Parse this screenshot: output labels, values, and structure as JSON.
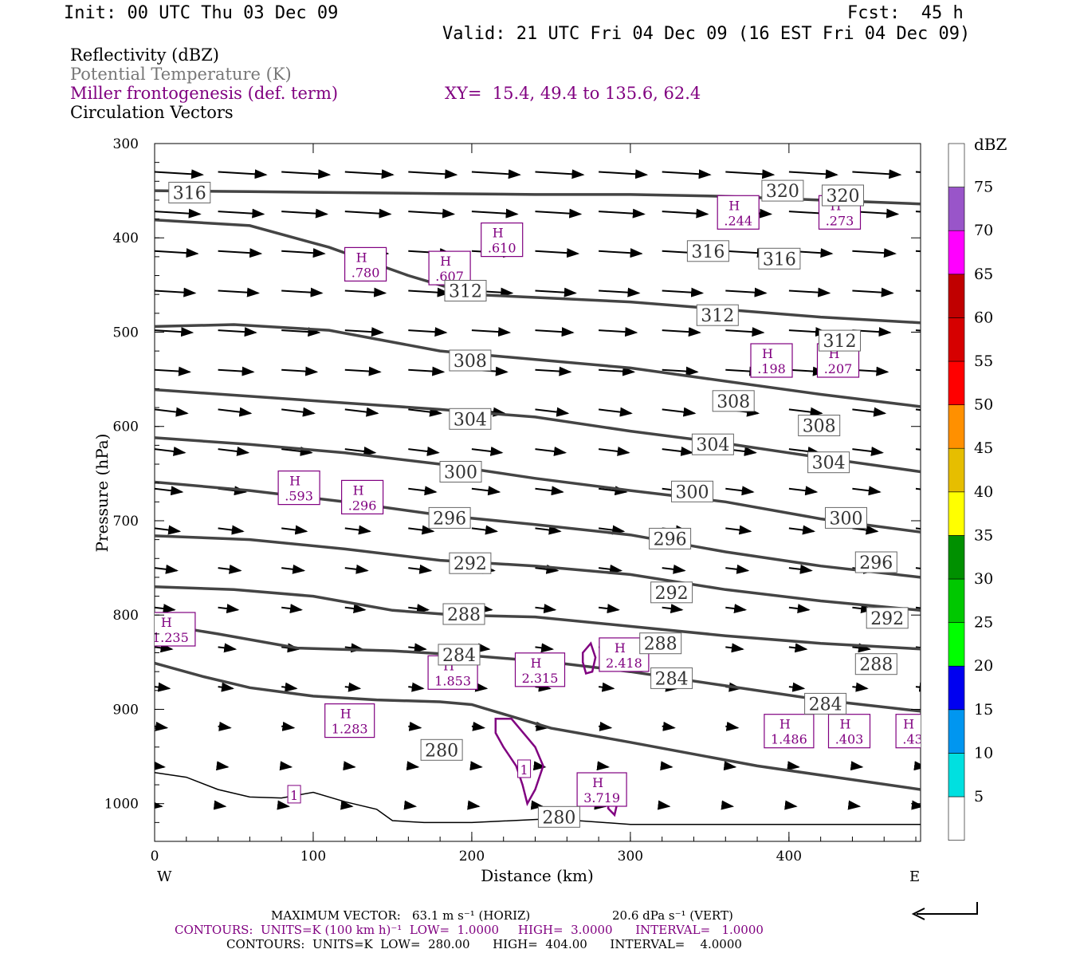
{
  "header": {
    "init": "Init: 00 UTC Thu 03 Dec 09",
    "fcst": "Fcst:  45 h",
    "valid": "Valid: 21 UTC Fri 04 Dec 09 (16 EST Fri 04 Dec 09)"
  },
  "legend": {
    "reflectivity": "Reflectivity (dBZ)",
    "theta": "Potential Temperature (K)",
    "miller": "Miller frontogenesis (def. term)",
    "xy": "XY=  15.4, 49.4 to 135.6, 62.4",
    "vectors": "Circulation Vectors"
  },
  "footer": {
    "max_vector_label": "MAXIMUM VECTOR:",
    "max_vector_horiz": "63.1 m s⁻¹ (HORIZ)",
    "max_vector_vert": "20.6 dPa s⁻¹ (VERT)",
    "contours_purple": "CONTOURS:  UNITS=K (100 km h)⁻¹  LOW=  1.0000     HIGH=  3.0000      INTERVAL=   1.0000",
    "contours_black": "CONTOURS:  UNITS=K  LOW=  280.00      HIGH=  404.00      INTERVAL=    4.0000"
  },
  "colors": {
    "theta": "#444444",
    "frontogenesis": "#800080",
    "vectors": "#000000"
  },
  "colorbar": {
    "unit": "dBZ",
    "levels": [
      "5",
      "10",
      "15",
      "20",
      "25",
      "30",
      "35",
      "40",
      "45",
      "50",
      "55",
      "60",
      "65",
      "70",
      "75"
    ],
    "colors": [
      "#ffffff",
      "#00e0e0",
      "#0096f0",
      "#0000f0",
      "#00ff00",
      "#00c800",
      "#009000",
      "#ffff00",
      "#e6be00",
      "#ff9000",
      "#ff0000",
      "#d60000",
      "#c00000",
      "#ff00ff",
      "#9955c9",
      "#ffffff"
    ]
  },
  "chart_data": {
    "type": "line",
    "xlabel": "Distance (km)",
    "ylabel": "Pressure (hPa)",
    "xlim": [
      0,
      483
    ],
    "ylim": [
      1040,
      300
    ],
    "x_ticks": [
      "0",
      "100",
      "200",
      "300",
      "400"
    ],
    "y_ticks": [
      "300",
      "400",
      "500",
      "600",
      "700",
      "800",
      "900",
      "1000"
    ],
    "x_end_labels": [
      "W",
      "E"
    ],
    "theta_series": [
      {
        "name": "316",
        "x": [
          0,
          60,
          120,
          180,
          240,
          300,
          360,
          420,
          483
        ],
        "y": [
          350,
          351,
          352,
          353,
          354,
          354,
          356,
          360,
          364
        ]
      },
      {
        "name": "312",
        "x": [
          0,
          60,
          110,
          160,
          200,
          250,
          300,
          360,
          420,
          483
        ],
        "y": [
          381,
          387,
          410,
          440,
          460,
          464,
          468,
          476,
          484,
          490
        ]
      },
      {
        "name": "308",
        "x": [
          0,
          50,
          110,
          180,
          240,
          300,
          360,
          420,
          483
        ],
        "y": [
          494,
          492,
          498,
          520,
          529,
          538,
          552,
          566,
          579
        ]
      },
      {
        "name": "304",
        "x": [
          0,
          60,
          120,
          180,
          240,
          300,
          360,
          420,
          483
        ],
        "y": [
          561,
          568,
          575,
          582,
          590,
          605,
          618,
          633,
          648
        ]
      },
      {
        "name": "300",
        "x": [
          0,
          60,
          120,
          180,
          240,
          300,
          360,
          420,
          483
        ],
        "y": [
          612,
          619,
          628,
          640,
          655,
          668,
          680,
          698,
          712
        ]
      },
      {
        "name": "296",
        "x": [
          0,
          60,
          120,
          180,
          240,
          300,
          360,
          420,
          483
        ],
        "y": [
          659,
          668,
          680,
          694,
          704,
          715,
          733,
          748,
          760
        ]
      },
      {
        "name": "292",
        "x": [
          0,
          60,
          120,
          180,
          240,
          300,
          360,
          420,
          483
        ],
        "y": [
          716,
          720,
          730,
          742,
          748,
          757,
          773,
          785,
          795
        ]
      },
      {
        "name": "288",
        "x": [
          0,
          50,
          100,
          150,
          190,
          240,
          300,
          360,
          420,
          483
        ],
        "y": [
          770,
          773,
          780,
          795,
          800,
          802,
          812,
          822,
          830,
          836
        ]
      },
      {
        "name": "284",
        "x": [
          0,
          40,
          90,
          150,
          200,
          250,
          300,
          360,
          420,
          483
        ],
        "y": [
          809,
          820,
          835,
          838,
          843,
          850,
          860,
          875,
          890,
          902
        ]
      },
      {
        "name": "280",
        "x": [
          0,
          30,
          60,
          100,
          140,
          180,
          200,
          250,
          300,
          380,
          483
        ],
        "y": [
          851,
          865,
          877,
          886,
          890,
          892,
          895,
          920,
          935,
          960,
          985
        ]
      }
    ],
    "theta_labels": [
      {
        "value": "316",
        "x": 22,
        "y": 352
      },
      {
        "value": "320",
        "x": 396,
        "y": 350
      },
      {
        "value": "320",
        "x": 434,
        "y": 355
      },
      {
        "value": "316",
        "x": 349,
        "y": 414
      },
      {
        "value": "316",
        "x": 394,
        "y": 422
      },
      {
        "value": "312",
        "x": 196,
        "y": 456
      },
      {
        "value": "312",
        "x": 355,
        "y": 482
      },
      {
        "value": "312",
        "x": 432,
        "y": 509
      },
      {
        "value": "308",
        "x": 199,
        "y": 530
      },
      {
        "value": "308",
        "x": 365,
        "y": 573
      },
      {
        "value": "308",
        "x": 419,
        "y": 599
      },
      {
        "value": "304",
        "x": 199,
        "y": 592
      },
      {
        "value": "304",
        "x": 352,
        "y": 619
      },
      {
        "value": "304",
        "x": 425,
        "y": 638
      },
      {
        "value": "300",
        "x": 193,
        "y": 648
      },
      {
        "value": "300",
        "x": 339,
        "y": 669
      },
      {
        "value": "300",
        "x": 436,
        "y": 697
      },
      {
        "value": "296",
        "x": 186,
        "y": 697
      },
      {
        "value": "296",
        "x": 325,
        "y": 719
      },
      {
        "value": "296",
        "x": 455,
        "y": 744
      },
      {
        "value": "292",
        "x": 199,
        "y": 745
      },
      {
        "value": "292",
        "x": 326,
        "y": 776
      },
      {
        "value": "292",
        "x": 462,
        "y": 803
      },
      {
        "value": "288",
        "x": 195,
        "y": 799
      },
      {
        "value": "288",
        "x": 319,
        "y": 830
      },
      {
        "value": "288",
        "x": 455,
        "y": 852
      },
      {
        "value": "284",
        "x": 192,
        "y": 842
      },
      {
        "value": "284",
        "x": 326,
        "y": 867
      },
      {
        "value": "284",
        "x": 423,
        "y": 894
      },
      {
        "value": "280",
        "x": 181,
        "y": 943
      },
      {
        "value": "280",
        "x": 255,
        "y": 1014
      }
    ],
    "frontogenesis_maxima": [
      {
        "value": ".244",
        "x": 368,
        "y": 373
      },
      {
        "value": ".273",
        "x": 432,
        "y": 373
      },
      {
        "value": ".610",
        "x": 219,
        "y": 402
      },
      {
        "value": ".780",
        "x": 133,
        "y": 428
      },
      {
        "value": ".607",
        "x": 186,
        "y": 432
      },
      {
        "value": ".198",
        "x": 389,
        "y": 530
      },
      {
        "value": ".207",
        "x": 431,
        "y": 530
      },
      {
        "value": ".593",
        "x": 91,
        "y": 665
      },
      {
        "value": ".296",
        "x": 131,
        "y": 675
      },
      {
        "value": "1.235",
        "x": 10,
        "y": 815
      },
      {
        "value": "1.853",
        "x": 188,
        "y": 861
      },
      {
        "value": "2.315",
        "x": 243,
        "y": 858
      },
      {
        "value": "2.418",
        "x": 296,
        "y": 842
      },
      {
        "value": "1.283",
        "x": 123,
        "y": 912
      },
      {
        "value": "1.486",
        "x": 400,
        "y": 923
      },
      {
        "value": ".403",
        "x": 438,
        "y": 923
      },
      {
        "value": ".43",
        "x": 478,
        "y": 923
      },
      {
        "value": "3.719",
        "x": 282,
        "y": 985
      }
    ],
    "frontogenesis_contour_labels": [
      {
        "value": "1",
        "x": 88,
        "y": 990
      },
      {
        "value": "1",
        "x": 233,
        "y": 963
      }
    ]
  }
}
